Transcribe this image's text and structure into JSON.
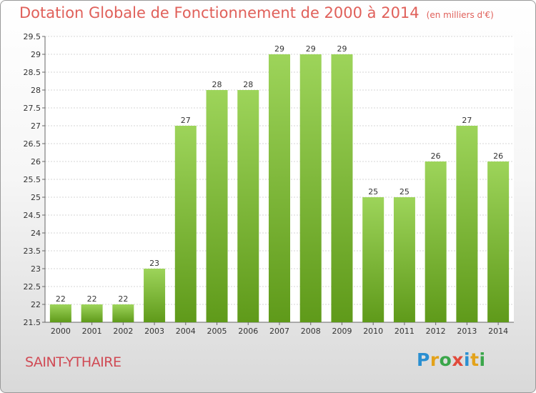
{
  "header": {
    "title": "Dotation Globale de Fonctionnement de 2000 à 2014",
    "unit": "(en milliers d'€)"
  },
  "footer": {
    "commune": "SAINT-YTHAIRE",
    "logo_text": "Proxiti"
  },
  "colors": {
    "title": "#e0605a",
    "bar_light": "#9dd45a",
    "bar_dark": "#5f9a1a",
    "logo": [
      "#2a8fd1",
      "#e3a21a",
      "#3aa64a",
      "#e14a3b",
      "#2a8fd1",
      "#e3a21a",
      "#3aa64a"
    ]
  },
  "chart_data": {
    "type": "bar",
    "title": "Dotation Globale de Fonctionnement de 2000 à 2014",
    "subtitle": "(en milliers d'€)",
    "xlabel": "",
    "ylabel": "",
    "categories": [
      "2000",
      "2001",
      "2002",
      "2003",
      "2004",
      "2005",
      "2006",
      "2007",
      "2008",
      "2009",
      "2010",
      "2011",
      "2012",
      "2013",
      "2014"
    ],
    "values": [
      22,
      22,
      22,
      23,
      27,
      28,
      28,
      29,
      29,
      29,
      25,
      25,
      26,
      27,
      26
    ],
    "ylim": [
      21.5,
      29.5
    ],
    "yticks": [
      "21.5",
      "22",
      "22.5",
      "23",
      "23.5",
      "24",
      "24.5",
      "25",
      "25.5",
      "26",
      "26.5",
      "27",
      "27.5",
      "28",
      "28.5",
      "29",
      "29.5"
    ],
    "grid": true,
    "legend": "none"
  }
}
